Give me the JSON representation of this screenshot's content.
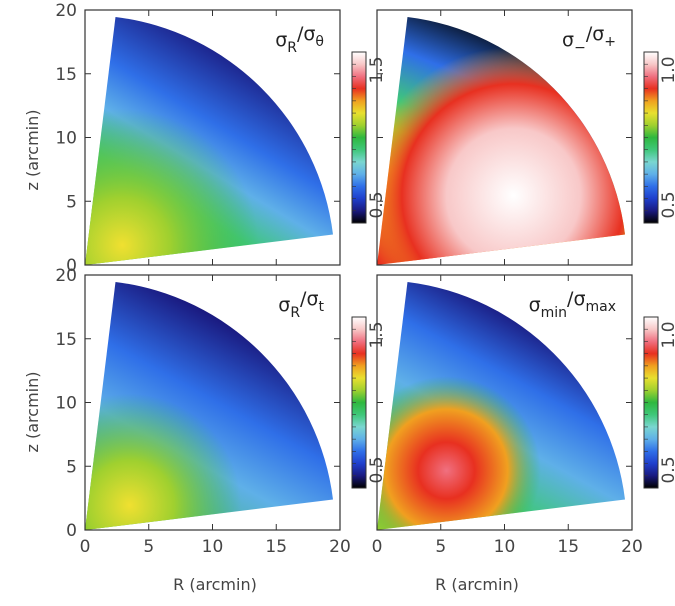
{
  "figure": {
    "x_axis_label": "R (arcmin)",
    "y_axis_label": "z (arcmin)"
  },
  "chart_data": [
    {
      "type": "heatmap",
      "panel": "top-left",
      "title": "σR/σθ",
      "title_parts": {
        "symbol": "σ",
        "sub": "R",
        "slash": "/",
        "symbol2": "σ",
        "sub2": "θ"
      },
      "xlim": [
        0,
        20
      ],
      "ylim": [
        0,
        20
      ],
      "xticks": [
        0,
        5,
        10,
        15,
        20
      ],
      "yticks": [
        0,
        5,
        10,
        15,
        20
      ],
      "xticks_shown": [],
      "ylabel_shown": true,
      "xlabel_shown": false,
      "colorbar": {
        "min": 0.5,
        "max": 1.5,
        "min_label": "0.5",
        "max_label": "1.5"
      },
      "map_description_values": [
        {
          "R": 1,
          "z": 18,
          "value": 0.55
        },
        {
          "R": 4,
          "z": 2,
          "value": 1.2
        },
        {
          "R": 12,
          "z": 8,
          "value": 0.95
        },
        {
          "R": 16,
          "z": 4,
          "value": 1.0
        }
      ]
    },
    {
      "type": "heatmap",
      "panel": "top-right",
      "title": "σ−/σ+",
      "title_parts": {
        "symbol": "σ",
        "sub": "−",
        "slash": "/",
        "symbol2": "σ",
        "sub2": "+"
      },
      "xlim": [
        0,
        20
      ],
      "ylim": [
        0,
        20
      ],
      "xticks": [
        0,
        5,
        10,
        15,
        20
      ],
      "yticks": [
        0,
        5,
        10,
        15,
        20
      ],
      "xticks_shown": [],
      "ylabel_shown": false,
      "xlabel_shown": false,
      "colorbar": {
        "min": 0.5,
        "max": 1.0,
        "min_label": "0.5",
        "max_label": "1.0"
      },
      "map_description_values": [
        {
          "R": 1,
          "z": 18,
          "value": 0.55
        },
        {
          "R": 8,
          "z": 12,
          "value": 0.8
        },
        {
          "R": 14,
          "z": 4,
          "value": 1.0
        },
        {
          "R": 3,
          "z": 2,
          "value": 0.85
        }
      ]
    },
    {
      "type": "heatmap",
      "panel": "bottom-left",
      "title": "σR/σt",
      "title_parts": {
        "symbol": "σ",
        "sub": "R",
        "slash": "/",
        "symbol2": "σ",
        "sub2": "t"
      },
      "xlim": [
        0,
        20
      ],
      "ylim": [
        0,
        20
      ],
      "xticks": [
        0,
        5,
        10,
        15,
        20
      ],
      "yticks": [
        0,
        5,
        10,
        15,
        20
      ],
      "xticks_shown": [
        0,
        5,
        10,
        15,
        20
      ],
      "ylabel_shown": true,
      "xlabel_shown": true,
      "colorbar": {
        "min": 0.5,
        "max": 1.5,
        "min_label": "0.5",
        "max_label": "1.5"
      },
      "map_description_values": [
        {
          "R": 1,
          "z": 18,
          "value": 0.55
        },
        {
          "R": 4,
          "z": 2,
          "value": 1.2
        },
        {
          "R": 12,
          "z": 8,
          "value": 0.85
        },
        {
          "R": 17,
          "z": 3,
          "value": 0.85
        }
      ]
    },
    {
      "type": "heatmap",
      "panel": "bottom-right",
      "title": "σmin/σmax",
      "title_parts": {
        "symbol": "σ",
        "sub": "min",
        "slash": "/",
        "symbol2": "σ",
        "sub2": "max"
      },
      "xlim": [
        0,
        20
      ],
      "ylim": [
        0,
        20
      ],
      "xticks": [
        0,
        5,
        10,
        15,
        20
      ],
      "yticks": [
        0,
        5,
        10,
        15,
        20
      ],
      "xticks_shown": [
        0,
        5,
        10,
        15,
        20
      ],
      "ylabel_shown": false,
      "xlabel_shown": true,
      "colorbar": {
        "min": 0.5,
        "max": 1.0,
        "min_label": "0.5",
        "max_label": "1.0"
      },
      "map_description_values": [
        {
          "R": 1,
          "z": 18,
          "value": 0.55
        },
        {
          "R": 5,
          "z": 5,
          "value": 0.93
        },
        {
          "R": 12,
          "z": 10,
          "value": 0.8
        },
        {
          "R": 17,
          "z": 3,
          "value": 0.75
        }
      ]
    }
  ],
  "colors": {
    "colormap": [
      "#000000",
      "#1a1a80",
      "#1f3fcc",
      "#2f6fe8",
      "#5fb0e8",
      "#7ad6d0",
      "#3fc77a",
      "#2fb83f",
      "#9fd02f",
      "#e8e02f",
      "#f0a020",
      "#e83020",
      "#f07080",
      "#f8c8c8",
      "#ffffff"
    ],
    "axis": "#444444"
  }
}
